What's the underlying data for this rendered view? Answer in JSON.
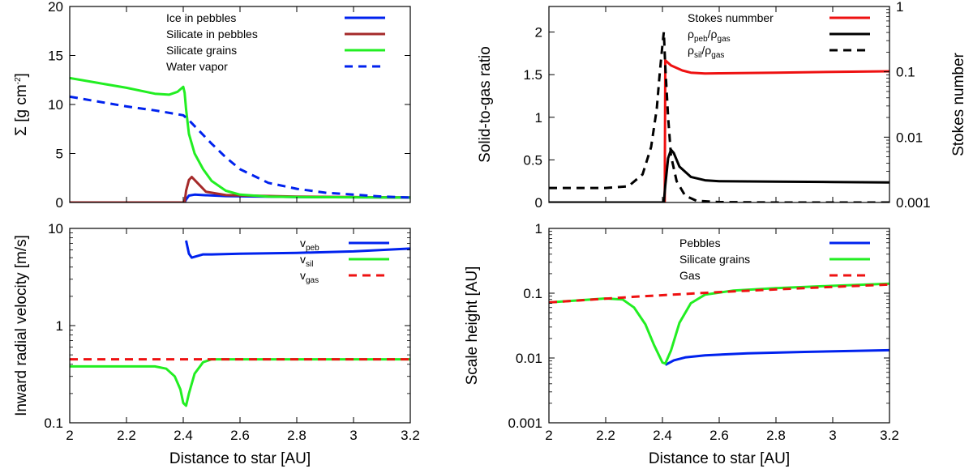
{
  "chart_data": [
    {
      "id": "p1",
      "type": "line",
      "xlabel": "",
      "ylabel": "Σ [g cm-2]",
      "ylabel_parts": [
        "Σ [g cm",
        "-2",
        "]"
      ],
      "xlim": [
        2,
        3.2
      ],
      "ylim": [
        0,
        20
      ],
      "yscale": "linear",
      "xticks": [
        2,
        2.2,
        2.4,
        2.6,
        2.8,
        3,
        3.2
      ],
      "xtick_labels": [],
      "yticks": [
        0,
        5,
        10,
        15,
        20
      ],
      "ytick_labels": [
        "0",
        "5",
        "10",
        "15",
        "20"
      ],
      "legend": "top-center",
      "series": [
        {
          "name": "Ice in pebbles",
          "color": "#0022ee",
          "dash": "solid",
          "x": [
            2.0,
            2.405,
            2.41,
            2.42,
            2.44,
            2.47,
            2.55,
            2.8,
            3.2
          ],
          "y": [
            0,
            0,
            0.3,
            0.7,
            0.8,
            0.75,
            0.65,
            0.55,
            0.5
          ]
        },
        {
          "name": "Silicate in pebbles",
          "color": "#a52a2a",
          "dash": "solid",
          "x": [
            2.0,
            2.405,
            2.41,
            2.42,
            2.43,
            2.45,
            2.48,
            2.55,
            2.8,
            3.2
          ],
          "y": [
            0,
            0,
            1.2,
            2.3,
            2.6,
            2.0,
            1.1,
            0.75,
            0.6,
            0.5
          ]
        },
        {
          "name": "Silicate grains",
          "color": "#22ee22",
          "dash": "solid",
          "x": [
            2.0,
            2.1,
            2.2,
            2.3,
            2.35,
            2.38,
            2.4,
            2.405,
            2.41,
            2.42,
            2.44,
            2.47,
            2.5,
            2.55,
            2.6,
            2.7,
            2.8,
            3.2
          ],
          "y": [
            12.7,
            12.2,
            11.7,
            11.1,
            11.0,
            11.3,
            11.8,
            11.2,
            9.5,
            7.0,
            5.0,
            3.4,
            2.2,
            1.2,
            0.8,
            0.6,
            0.55,
            0.5
          ]
        },
        {
          "name": "Water vapor",
          "color": "#0022ee",
          "dash": "dashed",
          "x": [
            2.0,
            2.1,
            2.2,
            2.3,
            2.4,
            2.42,
            2.45,
            2.5,
            2.55,
            2.6,
            2.7,
            2.8,
            2.9,
            3.0,
            3.1,
            3.2
          ],
          "y": [
            10.8,
            10.3,
            9.8,
            9.4,
            8.9,
            8.4,
            7.5,
            6.0,
            4.6,
            3.4,
            2.0,
            1.4,
            1.0,
            0.8,
            0.6,
            0.5
          ]
        }
      ]
    },
    {
      "id": "p2",
      "type": "line",
      "xlabel": "",
      "ylabel": "Solid-to-gas ratio",
      "ylabel_right": "Stokes number",
      "xlim": [
        2,
        3.2
      ],
      "ylim": [
        0,
        2.3
      ],
      "yscale": "linear",
      "ylim_right": [
        0.001,
        1
      ],
      "yscale_right": "log",
      "xticks": [
        2,
        2.2,
        2.4,
        2.6,
        2.8,
        3,
        3.2
      ],
      "xtick_labels": [],
      "yticks": [
        0,
        0.5,
        1,
        1.5,
        2
      ],
      "ytick_labels": [
        "0",
        "0.5",
        "1",
        "1.5",
        "2"
      ],
      "yticks_right": [
        0.001,
        0.01,
        0.1,
        1
      ],
      "ytick_labels_right": [
        "0.001",
        "0.01",
        "0.1",
        "1"
      ],
      "legend": "top-right",
      "series": [
        {
          "name": "Stokes nummber",
          "color": "#ee1111",
          "dash": "solid",
          "axis": "right",
          "x": [
            2.408,
            2.41,
            2.43,
            2.47,
            2.5,
            2.55,
            2.6,
            2.8,
            3.0,
            3.2
          ],
          "y": [
            0.001,
            0.15,
            0.125,
            0.105,
            0.097,
            0.094,
            0.095,
            0.097,
            0.1,
            0.102
          ]
        },
        {
          "name": "ρpeb/ρgas",
          "name_parts": [
            "ρ",
            "peb",
            "/ρ",
            "gas"
          ],
          "color": "#000000",
          "dash": "solid",
          "axis": "left",
          "x": [
            2.0,
            2.405,
            2.41,
            2.42,
            2.43,
            2.44,
            2.46,
            2.5,
            2.55,
            2.6,
            2.8,
            3.0,
            3.2
          ],
          "y": [
            0,
            0,
            0.2,
            0.52,
            0.62,
            0.58,
            0.42,
            0.3,
            0.26,
            0.25,
            0.245,
            0.24,
            0.235
          ]
        },
        {
          "name": "ρsil/ρgas",
          "name_parts": [
            "ρ",
            "sil",
            "/ρ",
            "gas"
          ],
          "color": "#000000",
          "dash": "dashed",
          "axis": "left",
          "x": [
            2.0,
            2.2,
            2.28,
            2.33,
            2.36,
            2.38,
            2.39,
            2.4,
            2.405,
            2.41,
            2.42,
            2.43,
            2.45,
            2.48,
            2.52,
            2.6,
            2.8,
            3.2
          ],
          "y": [
            0.17,
            0.17,
            0.19,
            0.33,
            0.65,
            1.1,
            1.5,
            1.85,
            2.0,
            1.6,
            1.0,
            0.55,
            0.25,
            0.08,
            0.02,
            0.005,
            0,
            0
          ]
        }
      ]
    },
    {
      "id": "p3",
      "type": "line",
      "xlabel": "Distance to star [AU]",
      "ylabel": "Inward radial velocity [m/s]",
      "xlim": [
        2,
        3.2
      ],
      "ylim": [
        0.1,
        10
      ],
      "yscale": "log",
      "xticks": [
        2,
        2.2,
        2.4,
        2.6,
        2.8,
        3,
        3.2
      ],
      "xtick_labels": [
        "2",
        "2.2",
        "2.4",
        "2.6",
        "2.8",
        "3",
        "3.2"
      ],
      "yticks": [
        0.1,
        1,
        10
      ],
      "ytick_labels": [
        "0.1",
        "1",
        "10"
      ],
      "legend": "top-right",
      "series": [
        {
          "name": "vpeb",
          "name_parts": [
            "v",
            "peb"
          ],
          "color": "#0022ee",
          "dash": "solid",
          "x": [
            2.41,
            2.42,
            2.43,
            2.45,
            2.47,
            2.5,
            2.6,
            2.8,
            3.0,
            3.2
          ],
          "y": [
            7.5,
            5.5,
            5.0,
            5.2,
            5.4,
            5.4,
            5.5,
            5.6,
            5.8,
            6.2
          ]
        },
        {
          "name": "vsil",
          "name_parts": [
            "v",
            "sil"
          ],
          "color": "#22ee22",
          "dash": "solid",
          "x": [
            2.0,
            2.3,
            2.34,
            2.37,
            2.39,
            2.4,
            2.41,
            2.42,
            2.44,
            2.47,
            2.5,
            2.6,
            2.8,
            3.2
          ],
          "y": [
            0.38,
            0.38,
            0.36,
            0.3,
            0.22,
            0.16,
            0.15,
            0.2,
            0.32,
            0.42,
            0.45,
            0.45,
            0.45,
            0.45
          ]
        },
        {
          "name": "vgas",
          "name_parts": [
            "v",
            "gas"
          ],
          "color": "#ee1111",
          "dash": "dashed",
          "x": [
            2.0,
            2.6,
            3.2
          ],
          "y": [
            0.45,
            0.45,
            0.45
          ]
        }
      ]
    },
    {
      "id": "p4",
      "type": "line",
      "xlabel": "Distance to star [AU]",
      "ylabel": "Scale height [AU]",
      "xlim": [
        2,
        3.2
      ],
      "ylim": [
        0.001,
        1
      ],
      "yscale": "log",
      "xticks": [
        2,
        2.2,
        2.4,
        2.6,
        2.8,
        3,
        3.2
      ],
      "xtick_labels": [
        "2",
        "2.2",
        "2.4",
        "2.6",
        "2.8",
        "3",
        "3.2"
      ],
      "yticks": [
        0.001,
        0.01,
        0.1,
        1
      ],
      "ytick_labels": [
        "0.001",
        "0.01",
        "0.1",
        "1"
      ],
      "legend": "top-center",
      "series": [
        {
          "name": "Pebbles",
          "color": "#0022ee",
          "dash": "solid",
          "x": [
            2.41,
            2.44,
            2.48,
            2.55,
            2.7,
            2.9,
            3.2
          ],
          "y": [
            0.0078,
            0.0092,
            0.0102,
            0.011,
            0.0118,
            0.0124,
            0.0132
          ]
        },
        {
          "name": "Silicate grains",
          "color": "#22ee22",
          "dash": "solid",
          "x": [
            2.0,
            2.2,
            2.26,
            2.3,
            2.34,
            2.37,
            2.4,
            2.41,
            2.43,
            2.46,
            2.5,
            2.55,
            2.65,
            2.8,
            3.0,
            3.2
          ],
          "y": [
            0.072,
            0.083,
            0.08,
            0.06,
            0.033,
            0.016,
            0.0085,
            0.0082,
            0.013,
            0.035,
            0.07,
            0.095,
            0.11,
            0.12,
            0.13,
            0.14
          ]
        },
        {
          "name": "Gas",
          "color": "#ee1111",
          "dash": "dashed",
          "x": [
            2.0,
            2.3,
            2.6,
            2.9,
            3.2
          ],
          "y": [
            0.072,
            0.088,
            0.104,
            0.12,
            0.136
          ]
        }
      ]
    }
  ]
}
